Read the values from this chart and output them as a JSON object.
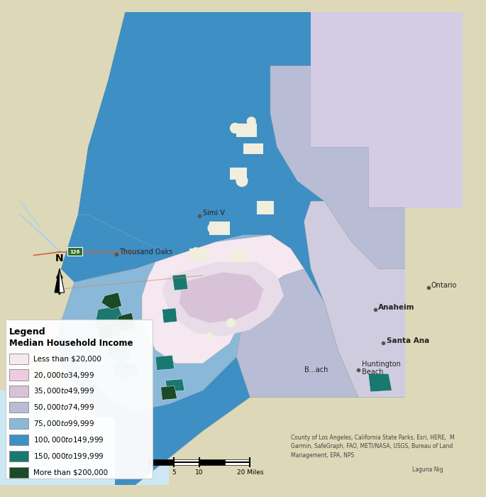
{
  "legend_title": "Legend",
  "legend_subtitle": "Median Household Income",
  "legend_entries": [
    {
      "label": "Less than $20,000",
      "color": "#f5e8f0"
    },
    {
      "label": "$20,000 to $34,999",
      "color": "#eecce0"
    },
    {
      "label": "$35,000 to $49,999",
      "color": "#d8c2d8"
    },
    {
      "label": "$50,000 to $74,999",
      "color": "#b8bcd4"
    },
    {
      "label": "$75,000 to $99,999",
      "color": "#8ab8d8"
    },
    {
      "label": "$100,000 to $149,999",
      "color": "#3d8fc4"
    },
    {
      "label": "$150,000 to $199,999",
      "color": "#1a7870"
    },
    {
      "label": "More than $200,000",
      "color": "#1a4a28"
    }
  ],
  "bg_light_blue": "#cce8f4",
  "bg_outer_tan": "#ddd8b8",
  "bg_outer_green": "#c8d4b0",
  "bg_pale_lavender": "#d4cce4",
  "color_mid_blue": "#3d8fc4",
  "color_light_blue_med": "#8ab8d8",
  "color_pale_blue": "#b8d4e8",
  "color_lavender": "#b8bcd4",
  "color_pale_lavender": "#d0cce0",
  "color_teal": "#1a7870",
  "color_dark_green": "#1a4a28",
  "color_cream": "#f0eedc",
  "color_white_pink": "#f5e8f0",
  "color_pink": "#eecce0",
  "color_mauve": "#d8c2d8",
  "figsize": [
    6.85,
    7.0
  ],
  "dpi": 100,
  "attribution": "County of Los Angeles, California State Parks, Esri, HERE,  M\nGarmin, SafeGraph, FAO, METI/NASA, USGS, Bureau of Land\nManagement, EPA, NPS",
  "attribution2": "Laguna Nig"
}
